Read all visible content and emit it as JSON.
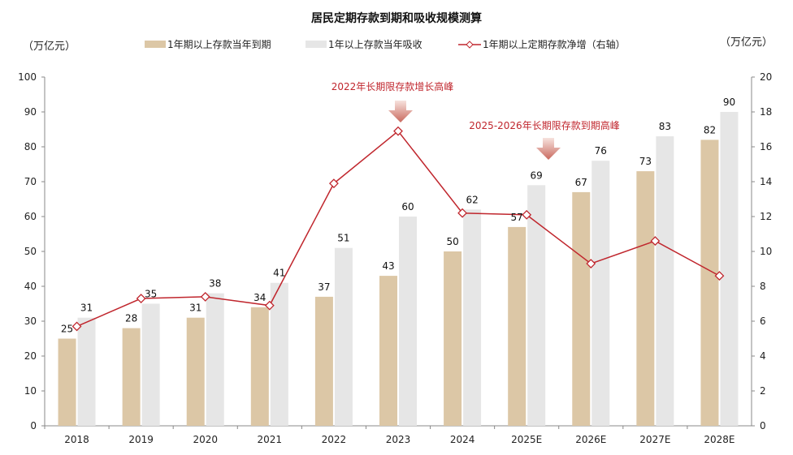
{
  "chart_data": {
    "type": "bar",
    "title": "居民定期存款到期和吸收规模测算",
    "ylabel_left": "（万亿元）",
    "ylabel_right": "（万亿元）",
    "ylim_left": [
      0,
      100
    ],
    "ylim_right": [
      0,
      20
    ],
    "yticks_left": [
      0,
      10,
      20,
      30,
      40,
      50,
      60,
      70,
      80,
      90,
      100
    ],
    "yticks_right": [
      0,
      2,
      4,
      6,
      8,
      10,
      12,
      14,
      16,
      18,
      20
    ],
    "categories": [
      "2018",
      "2019",
      "2020",
      "2021",
      "2022",
      "2023",
      "2024",
      "2025E",
      "2026E",
      "2027E",
      "2028E"
    ],
    "legend_position": "top",
    "grid": false,
    "series": [
      {
        "name": "1年期以上存款当年到期",
        "type": "bar",
        "axis": "left",
        "color": "#dcc7a6",
        "values": [
          25,
          28,
          31,
          34,
          37,
          43,
          50,
          57,
          67,
          73,
          82
        ]
      },
      {
        "name": "1年以上存款当年吸收",
        "type": "bar",
        "axis": "left",
        "color": "#e6e6e6",
        "values": [
          31,
          35,
          38,
          41,
          51,
          60,
          62,
          69,
          76,
          83,
          90
        ]
      },
      {
        "name": "1年期以上定期存款净增（右轴）",
        "type": "line",
        "axis": "right",
        "color": "#c0262d",
        "values": [
          5.7,
          7.3,
          7.4,
          6.9,
          13.9,
          16.9,
          12.2,
          12.1,
          9.3,
          10.6,
          8.6
        ]
      }
    ],
    "annotations": [
      {
        "text": "2022年长期限存款增长高峰",
        "category": "2023"
      },
      {
        "text": "2025-2026年长期限存款到期高峰",
        "category": "2025E"
      }
    ]
  }
}
